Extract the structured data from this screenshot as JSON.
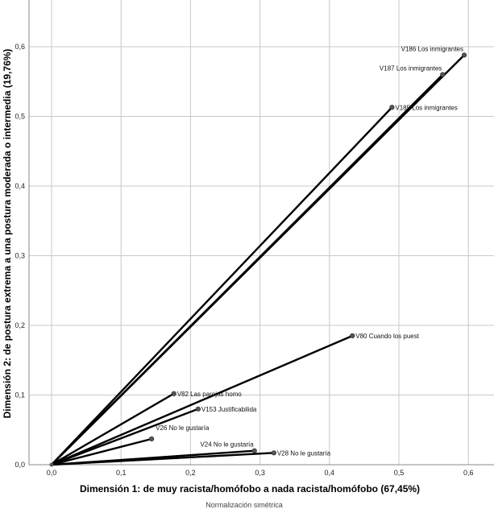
{
  "chart_data": {
    "type": "line",
    "subtype": "loading-vector-plot",
    "xlabel": "Dimensión 1: de muy racista/homófobo a nada racista/homófobo (67,45%)",
    "ylabel": "Dimensión 2: de postura extrema a una postura moderada o intermedia (19,76%)",
    "note": "Normalización simétrica",
    "xlim": [
      -0.033,
      0.636
    ],
    "ylim": [
      0.0,
      0.667
    ],
    "grid": true,
    "xticks": [
      0,
      0.1,
      0.2,
      0.3,
      0.4,
      0.5,
      0.6
    ],
    "xtick_labels": [
      "0,0",
      "0,1",
      "0,2",
      "0,3",
      "0,4",
      "0,5",
      "0,6"
    ],
    "yticks": [
      0,
      0.1,
      0.2,
      0.3,
      0.4,
      0.5,
      0.6
    ],
    "ytick_labels": [
      "0,0",
      "0,1",
      "0,2",
      "0,3",
      "0,4",
      "0,5",
      "0,6"
    ],
    "line_color": "#000000",
    "marker_color": "#555555",
    "grid_color": "#c8c8c8",
    "vectors": [
      {
        "label": "V186 Los inmigrantes",
        "x": 0.594,
        "y": 0.588,
        "placement": "above-left"
      },
      {
        "label": "V187 Los inmigrantes",
        "x": 0.563,
        "y": 0.56,
        "placement": "above-left"
      },
      {
        "label": "V185 Los inmigrantes",
        "x": 0.49,
        "y": 0.513,
        "placement": "right"
      },
      {
        "label": "V80 Cuando los puest",
        "x": 0.433,
        "y": 0.185,
        "placement": "right"
      },
      {
        "label": "V82 Las parejas homo",
        "x": 0.176,
        "y": 0.102,
        "placement": "right"
      },
      {
        "label": "V153 Justificabilida",
        "x": 0.211,
        "y": 0.08,
        "placement": "right"
      },
      {
        "label": "V26 No le gustaría",
        "x": 0.144,
        "y": 0.037,
        "placement": "above-right"
      },
      {
        "label": "V24 No le gustaría",
        "x": 0.292,
        "y": 0.02,
        "placement": "above-left"
      },
      {
        "label": "V28 No le gustaría",
        "x": 0.32,
        "y": 0.017,
        "placement": "right"
      }
    ]
  }
}
